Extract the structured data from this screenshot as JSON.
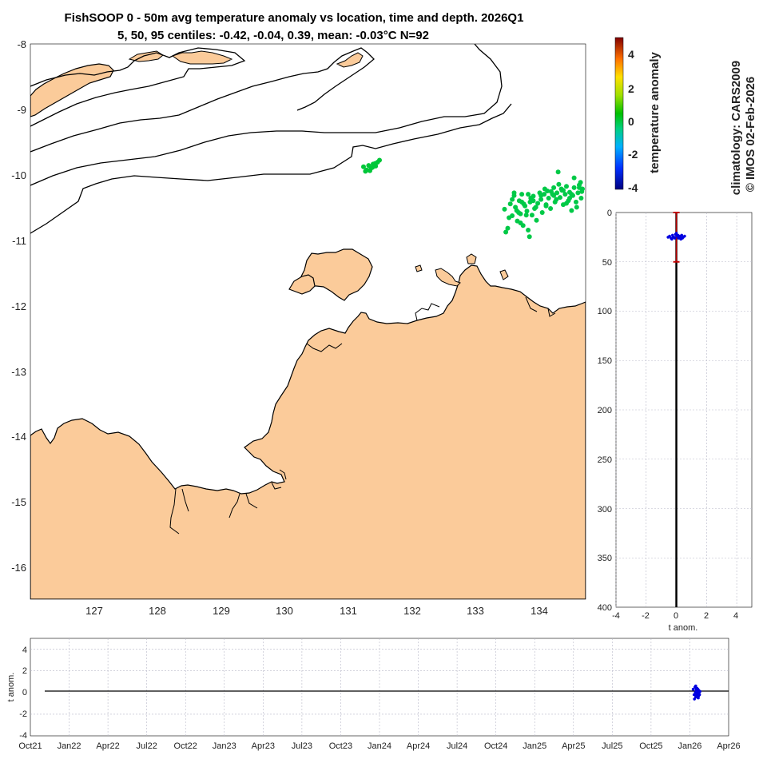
{
  "chart_data": [
    {
      "type": "scatter",
      "panel": "map",
      "title": "FishSOOP 0 - 50m avg temperature anomaly vs location, time and depth. 2026Q1",
      "subtitle": "5, 50, 95 centiles: -0.42, -0.04, 0.39, mean: -0.03°C N=92",
      "xlabel": "",
      "ylabel": "",
      "xlim": [
        126.0,
        134.7
      ],
      "ylim": [
        -16.5,
        -8.0
      ],
      "x_ticks": [
        "127",
        "128",
        "129",
        "130",
        "131",
        "132",
        "133",
        "134"
      ],
      "y_ticks": [
        "-8",
        "-9",
        "-10",
        "-11",
        "-12",
        "-13",
        "-14",
        "-15",
        "-16"
      ],
      "land_color": "#fbcb9a",
      "clusters": [
        {
          "name": "cluster-west",
          "x": [
            131.22,
            131.27,
            131.3,
            131.34,
            131.37,
            131.41,
            131.44,
            131.47,
            131.25,
            131.32,
            131.36,
            131.4
          ],
          "y": [
            -9.88,
            -9.93,
            -9.86,
            -9.9,
            -9.84,
            -9.87,
            -9.81,
            -9.78,
            -9.95,
            -9.94,
            -9.89,
            -9.83
          ],
          "anomaly": 0.1
        },
        {
          "name": "cluster-east",
          "x": [
            133.43,
            133.48,
            133.52,
            133.55,
            133.58,
            133.6,
            133.63,
            133.66,
            133.68,
            133.7,
            133.72,
            133.75,
            133.78,
            133.8,
            133.83,
            133.86,
            133.88,
            133.9,
            133.93,
            133.95,
            133.98,
            134.0,
            134.02,
            134.05,
            134.08,
            134.1,
            134.12,
            134.15,
            134.18,
            134.2,
            134.22,
            134.25,
            134.28,
            134.3,
            134.33,
            134.35,
            134.38,
            134.4,
            134.43,
            134.45,
            134.48,
            134.5,
            134.52,
            134.55,
            134.58,
            134.6,
            134.63,
            134.65,
            133.55,
            133.62,
            133.7,
            133.77,
            133.84,
            133.92,
            134.0,
            134.08,
            134.16,
            134.24,
            134.32,
            134.4,
            134.48,
            134.56,
            134.64,
            133.5,
            133.58,
            133.65,
            133.73,
            133.8,
            133.88,
            134.06,
            134.2,
            134.35,
            134.45,
            134.6,
            133.45,
            133.68,
            133.82,
            134.27,
            134.52,
            134.62
          ],
          "y": [
            -10.53,
            -10.82,
            -10.45,
            -10.63,
            -10.32,
            -10.5,
            -10.71,
            -10.4,
            -10.6,
            -10.3,
            -10.78,
            -10.48,
            -10.56,
            -10.85,
            -10.42,
            -10.62,
            -10.33,
            -10.52,
            -10.7,
            -10.44,
            -10.28,
            -10.38,
            -10.58,
            -10.3,
            -10.46,
            -10.25,
            -10.36,
            -10.52,
            -10.3,
            -10.2,
            -10.42,
            -10.28,
            -10.15,
            -10.35,
            -10.24,
            -10.46,
            -10.3,
            -10.18,
            -10.4,
            -10.27,
            -10.55,
            -10.32,
            -10.2,
            -10.42,
            -10.28,
            -10.16,
            -10.36,
            -10.22,
            -10.38,
            -10.55,
            -10.42,
            -10.62,
            -10.36,
            -10.5,
            -10.32,
            -10.48,
            -10.26,
            -10.38,
            -10.22,
            -10.44,
            -10.3,
            -10.5,
            -10.26,
            -10.66,
            -10.28,
            -10.58,
            -10.45,
            -10.3,
            -10.4,
            -10.22,
            -10.32,
            -10.24,
            -10.36,
            -10.2,
            -10.88,
            -10.74,
            -10.95,
            -9.96,
            -10.05,
            -10.12
          ],
          "anomaly": 0.0
        }
      ]
    },
    {
      "type": "scatter",
      "panel": "depth-profile",
      "xlabel": "t anom.",
      "ylabel": "",
      "xlim": [
        -4,
        5
      ],
      "ylim": [
        0,
        400
      ],
      "x_ticks": [
        "-4",
        "-2",
        "0",
        "2",
        "4"
      ],
      "y_ticks": [
        "0",
        "50",
        "100",
        "150",
        "200",
        "250",
        "300",
        "350",
        "400"
      ],
      "depth_range_marker": {
        "depth_top": 0,
        "depth_bottom": 50
      },
      "x": [
        -0.55,
        -0.45,
        -0.35,
        -0.25,
        -0.15,
        -0.05,
        0.05,
        0.15,
        0.25,
        0.35,
        0.45,
        0.55,
        0.3,
        -0.3,
        0.1,
        -0.1,
        0.2,
        -0.2,
        0.0,
        0.4
      ],
      "y": [
        25,
        24,
        26,
        23,
        25,
        22,
        24,
        26,
        25,
        23,
        25,
        24,
        27,
        27,
        23,
        26,
        24,
        25,
        21,
        26
      ]
    },
    {
      "type": "scatter",
      "panel": "time-series",
      "xlabel": "",
      "ylabel": "t anom.",
      "ylim": [
        -4,
        5
      ],
      "x_ticks": [
        "Oct21",
        "Jan22",
        "Apr22",
        "Jul22",
        "Oct22",
        "Jan23",
        "Apr23",
        "Jul23",
        "Oct23",
        "Jan24",
        "Apr24",
        "Jul24",
        "Oct24",
        "Jan25",
        "Apr25",
        "Jul25",
        "Oct25",
        "Jan26",
        "Apr26"
      ],
      "y_ticks": [
        "4",
        "2",
        "0",
        "-2",
        "-4"
      ],
      "x_days": [
        1560,
        1562,
        1564,
        1565,
        1566,
        1567,
        1568,
        1569,
        1570,
        1571,
        1572,
        1573,
        1574,
        1575,
        1576,
        1563,
        1566,
        1569,
        1571,
        1573,
        1567,
        1570,
        1572,
        1568
      ],
      "y": [
        0.3,
        -0.2,
        0.5,
        0.0,
        -0.4,
        0.2,
        -0.1,
        0.4,
        -0.3,
        0.1,
        -0.5,
        0.2,
        0.0,
        -0.2,
        0.1,
        -0.6,
        0.6,
        -0.1,
        0.3,
        -0.3,
        0.35,
        -0.45,
        0.15,
        -0.25
      ]
    },
    {
      "type": "colorbar",
      "panel": "colorbar",
      "label": "temperature anomaly",
      "range": [
        -4,
        5
      ],
      "ticks": [
        "4",
        "2",
        "0",
        "-2",
        "-4"
      ]
    }
  ],
  "side_text": {
    "line1": "climatology: CARS2009",
    "line2": "© IMOS 02-Feb-2026"
  }
}
